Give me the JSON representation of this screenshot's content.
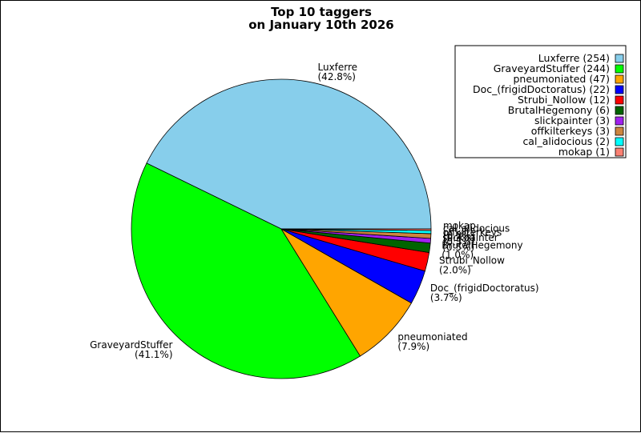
{
  "chart_data": {
    "type": "pie",
    "title": [
      "Top 10 taggers",
      "on January 10th 2026"
    ],
    "slices": [
      {
        "name": "Luxferre",
        "count": 254,
        "percent": "(42.8%)",
        "legend": "Luxferre (254)",
        "color": "#87ceeb"
      },
      {
        "name": "GraveyardStuffer",
        "count": 244,
        "percent": "(41.1%)",
        "legend": "GraveyardStuffer (244)",
        "color": "#00ff00"
      },
      {
        "name": "pneumoniated",
        "count": 47,
        "percent": "(7.9%)",
        "legend": "pneumoniated (47)",
        "color": "#ffa500"
      },
      {
        "name": "Doc_(frigidDoctoratus)",
        "count": 22,
        "percent": "(3.7%)",
        "legend": "Doc_(frigidDoctoratus) (22)",
        "color": "#0000ff"
      },
      {
        "name": "Strubi_Nollow",
        "count": 12,
        "percent": "(2.0%)",
        "legend": "Strubi_Nollow (12)",
        "color": "#ff0000"
      },
      {
        "name": "BrutalHegemony",
        "count": 6,
        "percent": "(1.0%)",
        "legend": "BrutalHegemony (6)",
        "color": "#006400"
      },
      {
        "name": "slickpainter",
        "count": 3,
        "percent": "(0.5%)",
        "legend": "slickpainter (3)",
        "color": "#a020f0"
      },
      {
        "name": "offkilterkeys",
        "count": 3,
        "percent": "(0.5%)",
        "legend": "offkilterkeys (3)",
        "color": "#cd853f"
      },
      {
        "name": "cal_alidocious",
        "count": 2,
        "percent": "(0.3%)",
        "legend": "cal_alidocious (2)",
        "color": "#00ffff"
      },
      {
        "name": "mokap",
        "count": 1,
        "percent": "(0.2%)",
        "legend": "mokap (1)",
        "color": "#fa8072"
      }
    ],
    "legend_position": "top-right",
    "start_angle_degrees": 0,
    "direction": "counterclockwise"
  }
}
